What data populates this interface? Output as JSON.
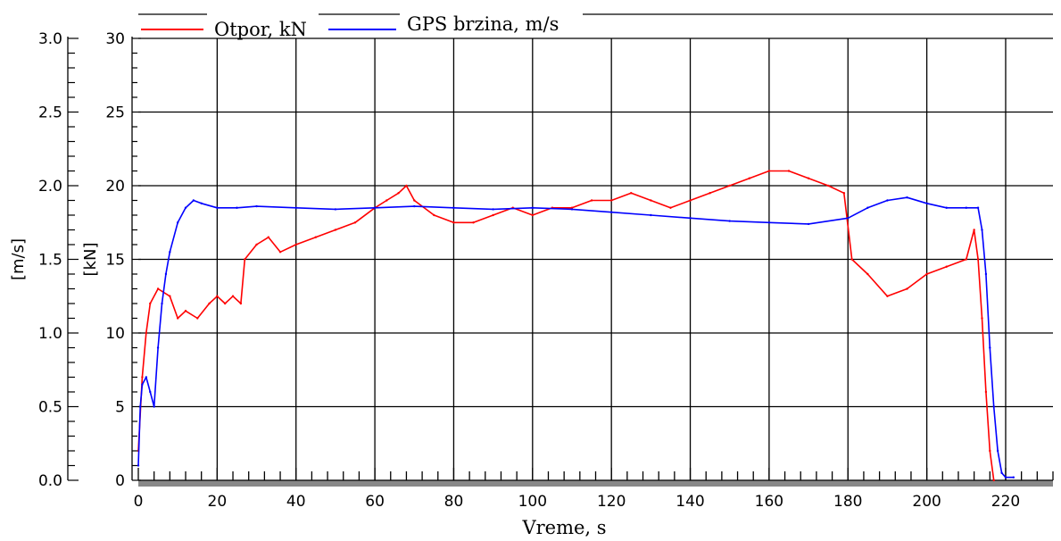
{
  "chart_data": {
    "type": "line",
    "xlabel": "Vreme, s",
    "xlim": [
      0,
      232
    ],
    "x_ticks": [
      0,
      20,
      40,
      60,
      80,
      100,
      120,
      140,
      160,
      180,
      200,
      220
    ],
    "grid": true,
    "legend_position": "top",
    "y_axes": [
      {
        "side": "left-outer",
        "label": "[m/s]",
        "ylim": [
          0.0,
          3.0
        ],
        "ticks": [
          "0.0",
          "0.5",
          "1.0",
          "1.5",
          "2.0",
          "2.5",
          "3.0"
        ]
      },
      {
        "side": "left-inner",
        "label": "[kN]",
        "ylim": [
          0,
          30
        ],
        "ticks": [
          "0",
          "5",
          "10",
          "15",
          "20",
          "25",
          "30"
        ]
      }
    ],
    "series": [
      {
        "name": "Otpor, kN",
        "color": "#ff0000",
        "axis": "kN",
        "x": [
          0,
          1,
          2,
          3,
          5,
          8,
          10,
          12,
          15,
          18,
          20,
          22,
          24,
          26,
          27,
          30,
          33,
          36,
          40,
          45,
          50,
          55,
          60,
          63,
          66,
          68,
          70,
          75,
          80,
          85,
          90,
          95,
          100,
          105,
          110,
          115,
          120,
          125,
          130,
          135,
          140,
          145,
          150,
          155,
          160,
          165,
          170,
          175,
          179,
          181,
          185,
          190,
          195,
          200,
          205,
          210,
          212,
          213,
          214,
          215,
          216,
          217
        ],
        "y": [
          2,
          7,
          10,
          12,
          13,
          12.5,
          11,
          11.5,
          11,
          12,
          12.5,
          12,
          12.5,
          12,
          15,
          16,
          16.5,
          15.5,
          16,
          16.5,
          17,
          17.5,
          18.5,
          19,
          19.5,
          20,
          19,
          18,
          17.5,
          17.5,
          18,
          18.5,
          18,
          18.5,
          18.5,
          19,
          19,
          19.5,
          19,
          18.5,
          19,
          19.5,
          20,
          20.5,
          21,
          21,
          20.5,
          20,
          19.5,
          15,
          14,
          12.5,
          13,
          14,
          14.5,
          15,
          17,
          15,
          11,
          6,
          2,
          0
        ]
      },
      {
        "name": "GPS brzina, m/s",
        "color": "#0000ff",
        "axis": "m/s",
        "x": [
          0,
          0.5,
          1,
          2,
          3,
          4,
          5,
          6,
          7,
          8,
          10,
          12,
          14,
          16,
          20,
          25,
          30,
          40,
          50,
          60,
          70,
          80,
          90,
          100,
          110,
          120,
          130,
          140,
          150,
          160,
          170,
          180,
          185,
          190,
          195,
          200,
          205,
          210,
          213,
          214,
          215,
          216,
          217,
          218,
          219,
          220,
          222
        ],
        "y": [
          0.1,
          0.5,
          0.65,
          0.7,
          0.6,
          0.5,
          0.9,
          1.2,
          1.4,
          1.55,
          1.75,
          1.85,
          1.9,
          1.88,
          1.85,
          1.85,
          1.86,
          1.85,
          1.84,
          1.85,
          1.86,
          1.85,
          1.84,
          1.85,
          1.84,
          1.82,
          1.8,
          1.78,
          1.76,
          1.75,
          1.74,
          1.78,
          1.85,
          1.9,
          1.92,
          1.88,
          1.85,
          1.85,
          1.85,
          1.7,
          1.4,
          0.9,
          0.5,
          0.2,
          0.05,
          0.02,
          0.02
        ]
      }
    ]
  }
}
